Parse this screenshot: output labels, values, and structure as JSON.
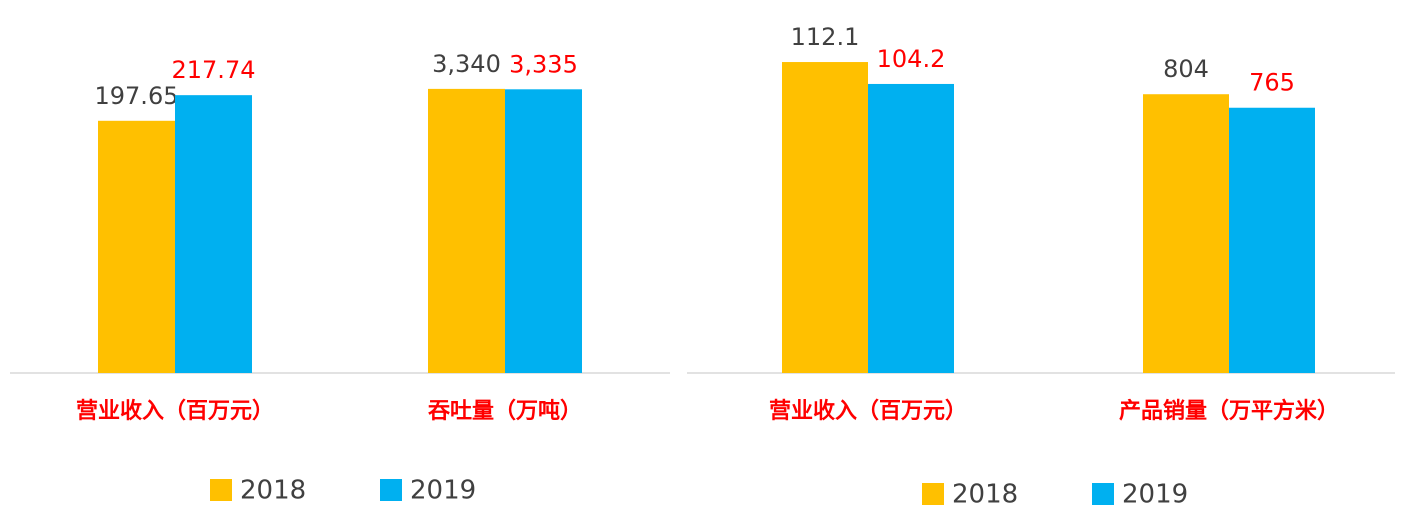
{
  "chart_data": [
    {
      "type": "bar",
      "categories": [
        "营业收入（百万元）",
        "吞吐量（万吨）"
      ],
      "category_axis": [
        "y",
        "y2"
      ],
      "ylim": [
        0,
        250
      ],
      "y2lim": [
        0,
        3750
      ],
      "series": [
        {
          "name": "2018",
          "color": "#ffc000",
          "label_color": "#404040",
          "values": [
            197.65,
            3340
          ],
          "value_labels": [
            "197.65",
            "3,340"
          ]
        },
        {
          "name": "2019",
          "color": "#00b0f0",
          "label_color": "#ff0000",
          "values": [
            217.74,
            3335
          ],
          "value_labels": [
            "217.74",
            "3,335"
          ]
        }
      ]
    },
    {
      "type": "bar",
      "categories": [
        "营业收入（百万元）",
        "产品销量（万平方米）"
      ],
      "category_axis": [
        "y",
        "y2"
      ],
      "ylim": [
        0,
        115
      ],
      "y2lim": [
        0,
        920
      ],
      "series": [
        {
          "name": "2018",
          "color": "#ffc000",
          "label_color": "#404040",
          "values": [
            112.1,
            804
          ]
        },
        {
          "name": "2019",
          "color": "#00b0f0",
          "label_color": "#ff0000",
          "values": [
            104.2,
            765
          ]
        }
      ]
    }
  ]
}
